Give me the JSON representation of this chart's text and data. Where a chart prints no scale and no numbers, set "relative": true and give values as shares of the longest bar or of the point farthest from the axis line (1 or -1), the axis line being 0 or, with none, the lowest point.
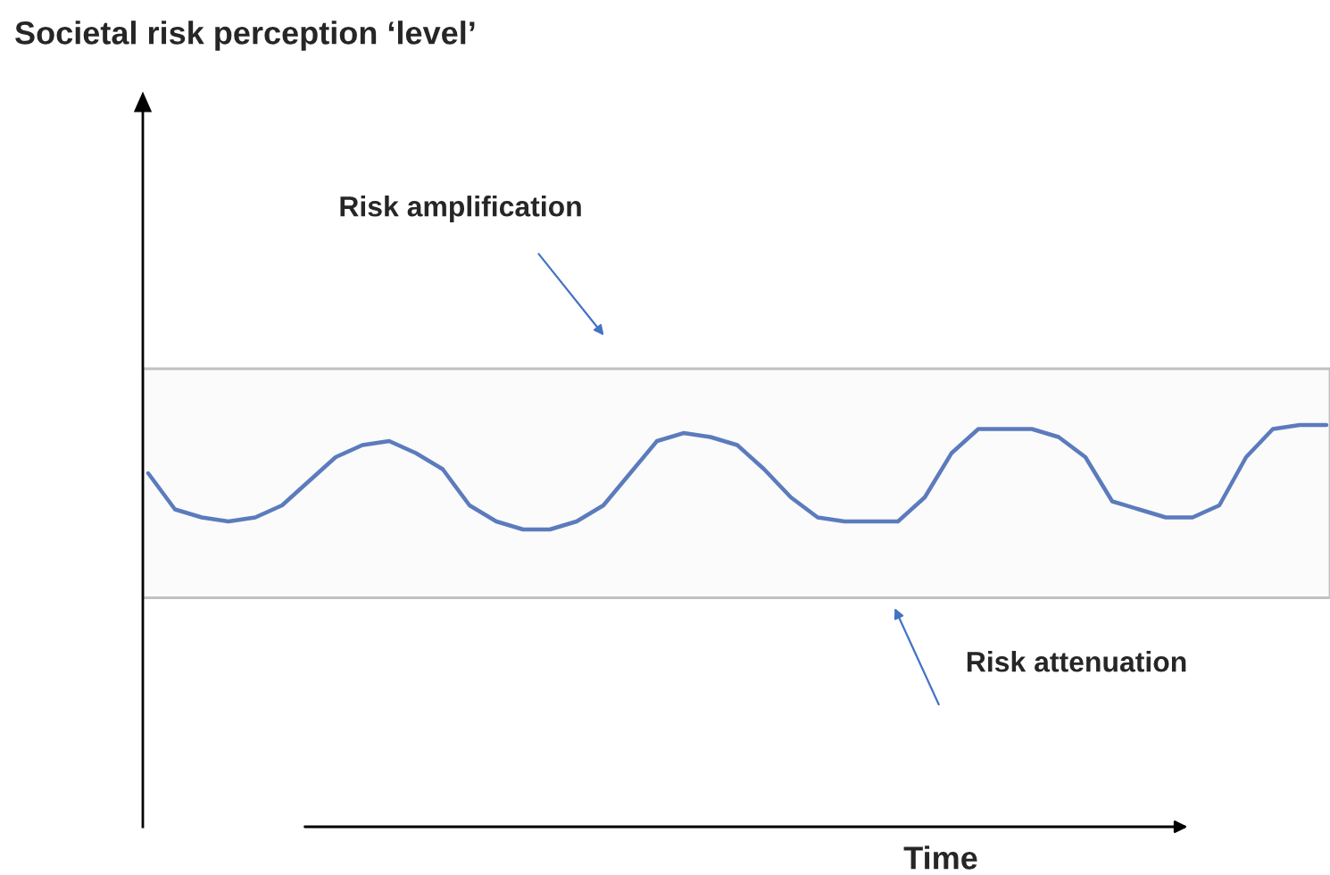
{
  "chart_data": {
    "type": "line",
    "title": "Societal risk perception ‘level’",
    "xlabel": "Time",
    "relative": true,
    "categories": [
      null,
      null,
      null,
      null,
      null,
      null,
      null,
      null,
      null,
      null,
      null,
      null,
      null,
      null,
      null,
      null,
      null,
      null,
      null,
      null,
      null,
      null,
      null,
      null,
      null,
      null,
      null,
      null,
      null,
      null,
      null,
      null,
      null,
      null,
      null,
      null,
      null,
      null,
      null,
      null,
      null,
      null,
      null,
      null,
      null
    ],
    "series": [
      {
        "color": "#5b7bbd",
        "values": [
          0.88,
          0.79,
          0.77,
          0.76,
          0.77,
          0.8,
          0.86,
          0.92,
          0.95,
          0.96,
          0.93,
          0.89,
          0.8,
          0.76,
          0.74,
          0.74,
          0.76,
          0.8,
          0.88,
          0.96,
          0.98,
          0.97,
          0.95,
          0.89,
          0.82,
          0.77,
          0.76,
          0.76,
          0.76,
          0.82,
          0.93,
          0.99,
          0.99,
          0.99,
          0.97,
          0.92,
          0.81,
          0.79,
          0.77,
          0.77,
          0.8,
          0.92,
          0.99,
          1,
          1.0
        ]
      }
    ],
    "bands": [
      {
        "axis": "y",
        "from": 0.57,
        "to": 1.14,
        "color": "#c0c0c0"
      }
    ],
    "annotations": [
      "Risk amplification",
      "Risk attenuation"
    ]
  }
}
